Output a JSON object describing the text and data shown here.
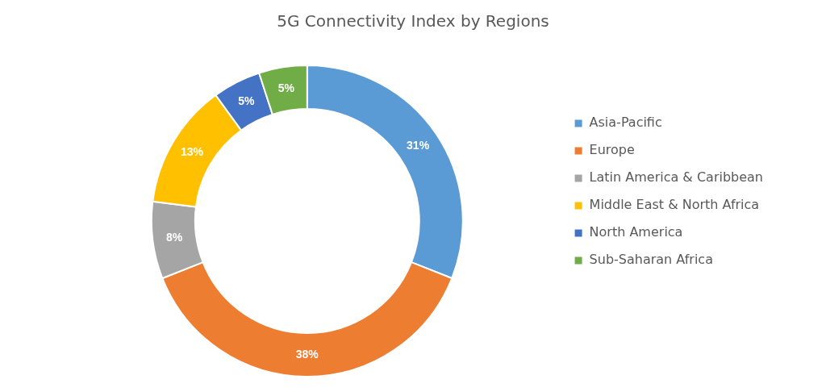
{
  "chart_data": {
    "type": "donut",
    "title": "5G Connectivity Index by Regions",
    "categories": [
      "Asia-Pacific",
      "Europe",
      "Latin America & Caribbean",
      "Middle East & North Africa",
      "North America",
      "Sub-Saharan Africa"
    ],
    "values": [
      31,
      38,
      8,
      13,
      5,
      5
    ],
    "colors": [
      "#5b9bd5",
      "#ed7d31",
      "#a5a5a5",
      "#ffc000",
      "#4472c4",
      "#70ad47"
    ],
    "value_labels": [
      "31%",
      "38%",
      "8%",
      "13%",
      "5%",
      "5%"
    ],
    "legend": "right"
  }
}
